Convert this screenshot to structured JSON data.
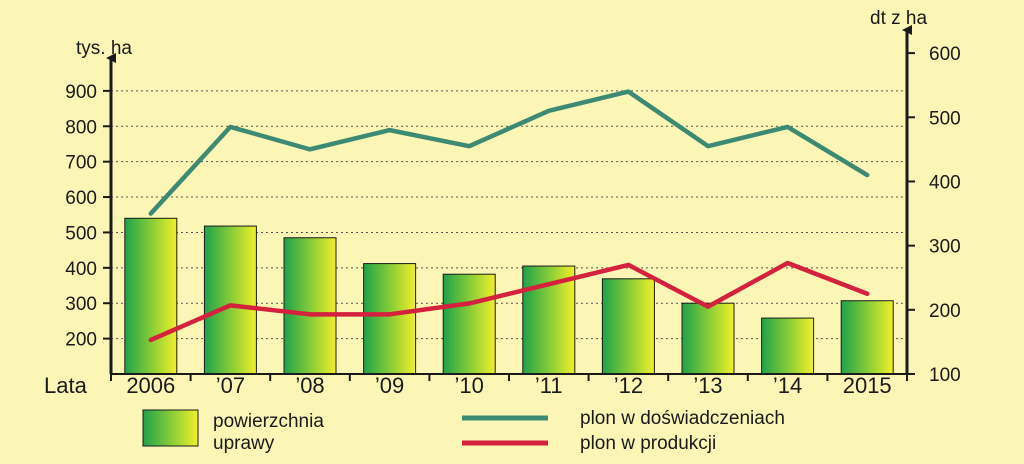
{
  "chart_data": {
    "type": "bar",
    "x_prefix": "Lata",
    "categories": [
      "2006",
      "’07",
      "’08",
      "’09",
      "’10",
      "’11",
      "’12",
      "’13",
      "’14",
      "2015"
    ],
    "y_left": {
      "unit": "tys. ha",
      "ticks": [
        200,
        300,
        400,
        500,
        600,
        700,
        800,
        900
      ],
      "range": [
        100,
        1000
      ]
    },
    "y_right": {
      "unit": "dt z ha",
      "ticks": [
        100,
        200,
        300,
        400,
        500,
        600
      ],
      "range": [
        100,
        600
      ]
    },
    "grid": true,
    "legend_position": "bottom",
    "series": [
      {
        "name": "powierzchnia uprawy",
        "type": "bar",
        "axis": "left",
        "values": [
          540,
          518,
          485,
          412,
          382,
          405,
          369,
          300,
          258,
          307
        ]
      },
      {
        "name": "plon w doświadczeniach",
        "type": "line",
        "axis": "right",
        "values": [
          350,
          485,
          450,
          480,
          455,
          510,
          540,
          455,
          485,
          410
        ]
      },
      {
        "name": "plon w produkcji",
        "type": "line",
        "axis": "right",
        "values": [
          153,
          207,
          193,
          193,
          210,
          240,
          270,
          205,
          273,
          225
        ]
      }
    ]
  },
  "colors": {
    "background": "#fbf6b5",
    "bar_dark": "#1fa24a",
    "bar_light": "#f2ef2a",
    "line_experiment": "#3d8a74",
    "line_production": "#d4213d",
    "axis": "#1a1a1a"
  },
  "legend": {
    "bar_label_line1": "powierzchnia",
    "bar_label_line2": "uprawy",
    "experiment_label": "plon w doświadczeniach",
    "production_label": "plon w produkcji"
  }
}
